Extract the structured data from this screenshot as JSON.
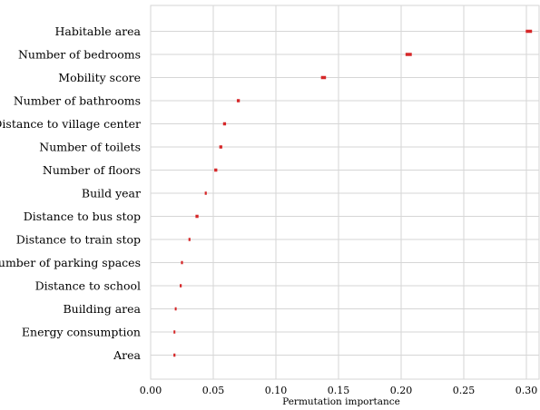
{
  "chart_data": {
    "type": "scatter",
    "xlabel": "Permutation importance",
    "ylabel": "",
    "title": "",
    "xlim": [
      0.0,
      0.31
    ],
    "xticks": [
      0.0,
      0.05,
      0.1,
      0.15,
      0.2,
      0.25,
      0.3
    ],
    "xtick_labels": [
      "0.00",
      "0.05",
      "0.10",
      "0.15",
      "0.20",
      "0.25",
      "0.30"
    ],
    "grid": true,
    "marker_color": "#d62728",
    "categories": [
      "Habitable area",
      "Number of bedrooms",
      "Mobility score",
      "Number of bathrooms",
      "Distance to village center",
      "Number of toilets",
      "Number of floors",
      "Build year",
      "Distance to bus stop",
      "Distance to train stop",
      "Number of parking spaces",
      "Distance to school",
      "Building area",
      "Energy consumption",
      "Area"
    ],
    "values": [
      0.302,
      0.206,
      0.138,
      0.07,
      0.059,
      0.056,
      0.052,
      0.044,
      0.037,
      0.031,
      0.025,
      0.024,
      0.02,
      0.019,
      0.019
    ],
    "spread": [
      0.0025,
      0.0025,
      0.002,
      0.0012,
      0.0012,
      0.0012,
      0.0012,
      0.0008,
      0.0012,
      0.0008,
      0.0008,
      0.0008,
      0.0005,
      0.0005,
      0.0008
    ]
  }
}
